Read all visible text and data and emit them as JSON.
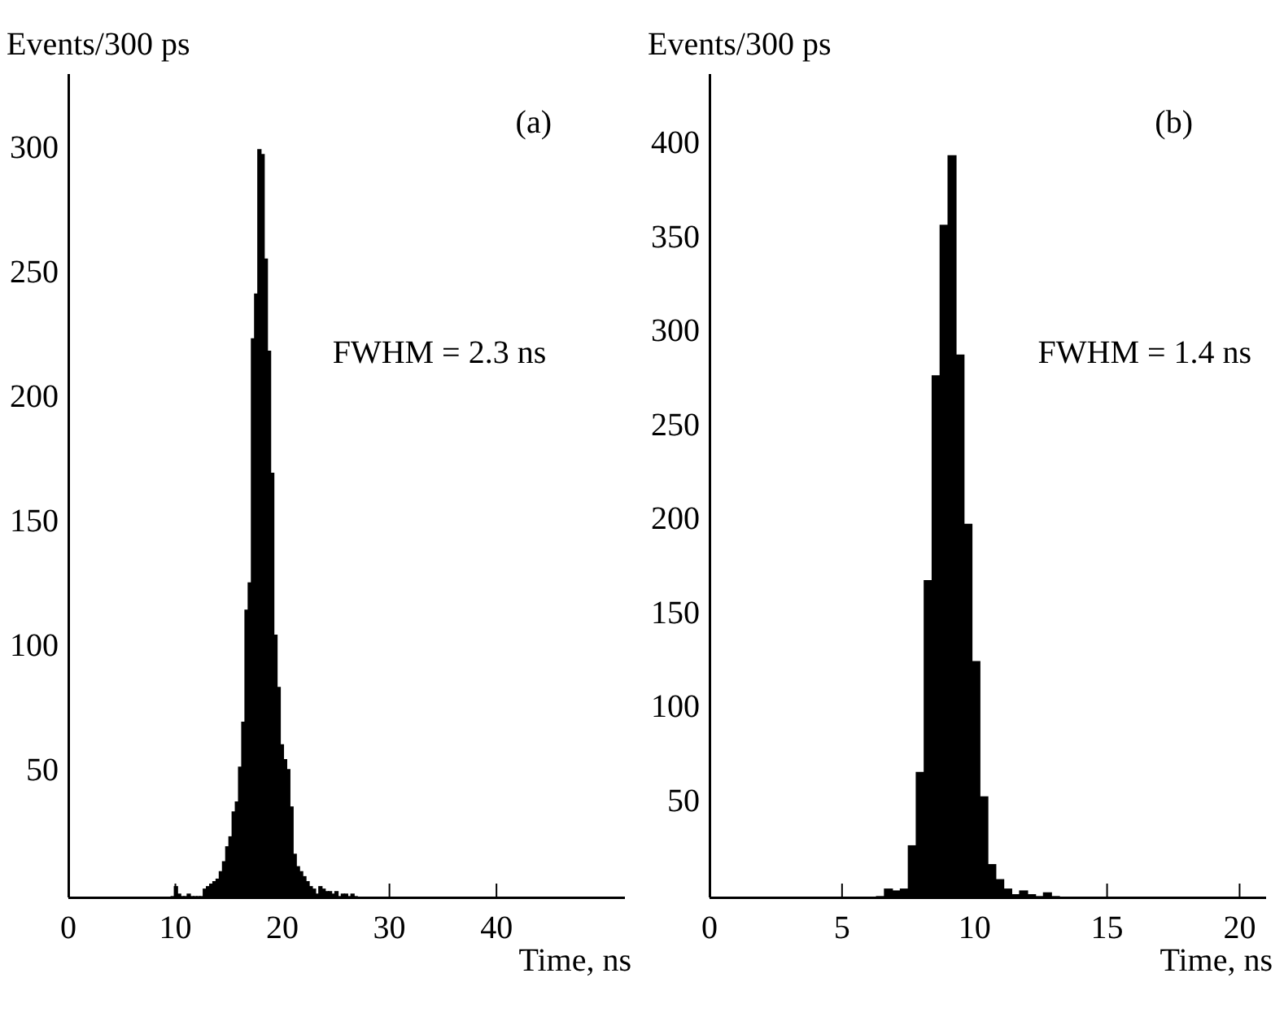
{
  "chart_data": [
    {
      "type": "histogram",
      "ylabel": "Events/300 ps",
      "xlabel": "Time, ns",
      "annotations": [
        "(a)",
        "FWHM = 2.3 ns"
      ],
      "color": "#000000",
      "bins": [
        9.6,
        9.9,
        10.2,
        10.5,
        10.8,
        11.1,
        11.4,
        11.7,
        12.0,
        12.3,
        12.6,
        12.9,
        13.2,
        13.5,
        13.8,
        14.1,
        14.4,
        14.7,
        15.0,
        15.3,
        15.6,
        15.9,
        16.2,
        16.5,
        16.8,
        17.1,
        17.4,
        17.7,
        18.0,
        18.3,
        18.6,
        18.9,
        19.2,
        19.5,
        19.8,
        20.1,
        20.4,
        20.7,
        21.0,
        21.3,
        21.6,
        21.9,
        22.2,
        22.5,
        22.8,
        23.1,
        23.4,
        23.7,
        24.0,
        24.3,
        24.6,
        24.9,
        25.2,
        25.5,
        25.8,
        26.1,
        26.4,
        26.7,
        27.0
      ],
      "values": [
        0,
        4,
        1,
        0,
        0,
        1,
        0,
        0,
        0,
        0,
        3,
        4,
        5,
        6,
        7,
        10,
        14,
        20,
        24,
        34,
        38,
        52,
        70,
        115,
        126,
        224,
        242,
        300,
        298,
        256,
        219,
        170,
        105,
        84,
        61,
        55,
        51,
        36,
        17,
        12,
        10,
        8,
        6,
        4,
        3,
        1,
        4,
        3,
        2,
        2,
        1,
        2,
        0,
        1,
        1,
        0,
        1,
        0
      ],
      "xlim": [
        0,
        52
      ],
      "xticks": [
        0,
        10,
        20,
        30,
        40
      ],
      "ylim": [
        0,
        330
      ],
      "yticks": [
        50,
        100,
        150,
        200,
        250,
        300
      ],
      "grid": false
    },
    {
      "type": "histogram",
      "ylabel": "Events/300 ps",
      "xlabel": "Time, ns",
      "annotations": [
        "(b)",
        "FWHM = 1.4 ns"
      ],
      "color": "#000000",
      "bins": [
        6.3,
        6.6,
        6.9,
        7.2,
        7.5,
        7.8,
        8.1,
        8.4,
        8.7,
        9.0,
        9.3,
        9.6,
        9.9,
        10.2,
        10.5,
        10.8,
        11.1,
        11.4,
        11.7,
        12.0,
        12.3,
        12.6,
        12.9,
        13.2
      ],
      "values": [
        0,
        4,
        3,
        4,
        27,
        66,
        168,
        277,
        357,
        394,
        288,
        198,
        125,
        53,
        17,
        9,
        4,
        1,
        3,
        1,
        0,
        2,
        0
      ],
      "xlim": [
        0,
        21
      ],
      "xticks": [
        0,
        5,
        10,
        15,
        20
      ],
      "ylim": [
        0,
        437
      ],
      "yticks": [
        50,
        100,
        150,
        200,
        250,
        300,
        350,
        400
      ],
      "grid": false
    }
  ]
}
